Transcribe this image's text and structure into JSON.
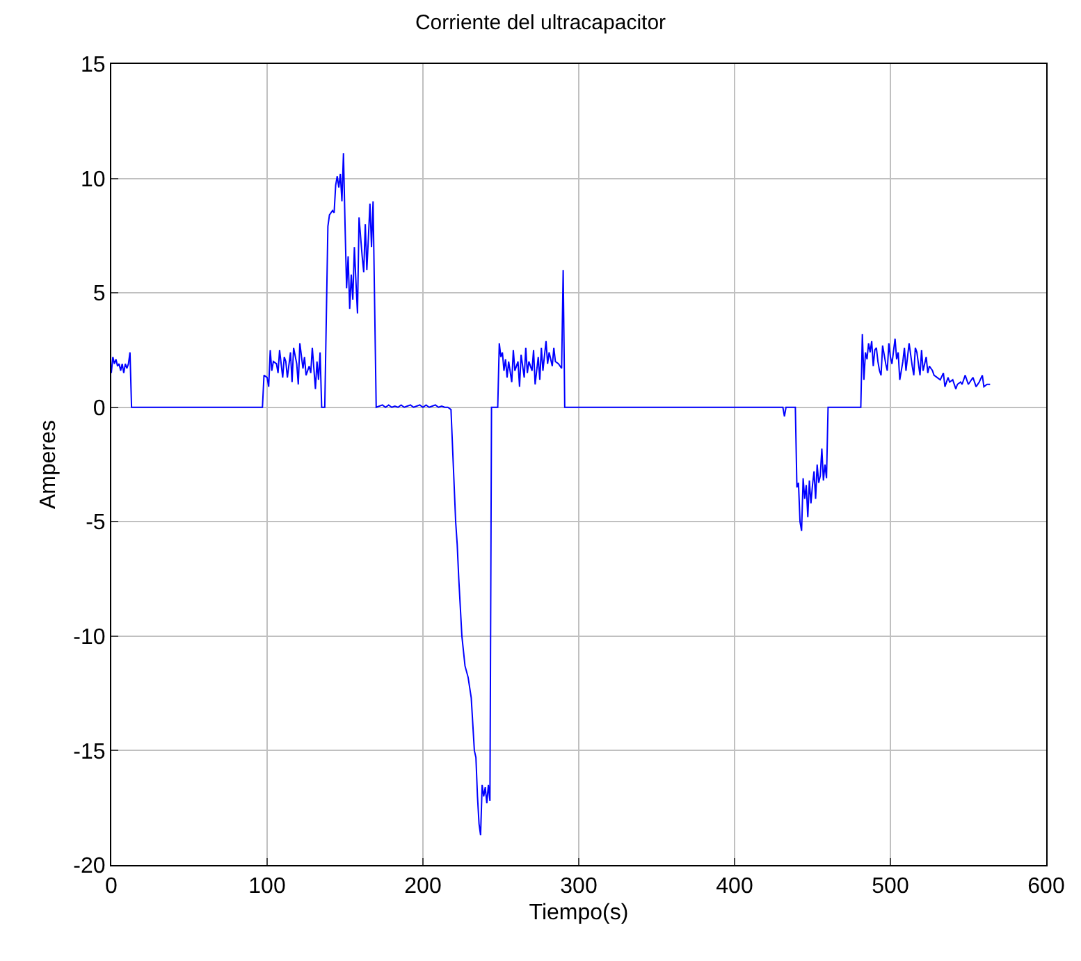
{
  "chart_data": {
    "type": "line",
    "title": "Corriente del ultracapacitor",
    "xlabel": "Tiempo(s)",
    "ylabel": "Amperes",
    "xlim": [
      0,
      600
    ],
    "xticks": [
      0,
      100,
      200,
      300,
      400,
      500,
      600
    ],
    "ylim": [
      -20,
      15
    ],
    "yticks": [
      -20,
      -15,
      -10,
      -5,
      0,
      5,
      10,
      15
    ],
    "grid": true,
    "legend": false,
    "marker": "none",
    "line_style": "solid",
    "series": [
      {
        "color": "#0000ff",
        "x": [
          0,
          1,
          2,
          3,
          4,
          5,
          6,
          7,
          8,
          9,
          10,
          11,
          12,
          13,
          97,
          98,
          100,
          101,
          102,
          103,
          104,
          106,
          107,
          108,
          110,
          111,
          112,
          113,
          115,
          116,
          117,
          119,
          120,
          121,
          123,
          124,
          125,
          126,
          127,
          128,
          129,
          131,
          132,
          133,
          134,
          135,
          137,
          139,
          140,
          142,
          143,
          144,
          145,
          146,
          147,
          148,
          149,
          150,
          151,
          152,
          153,
          154,
          155,
          156,
          157,
          158,
          159,
          161,
          162,
          163,
          164,
          165,
          166,
          167,
          168,
          170,
          174,
          176,
          178,
          180,
          182,
          184,
          186,
          188,
          190,
          192,
          194,
          196,
          198,
          200,
          202,
          204,
          206,
          208,
          210,
          212,
          214,
          216,
          218,
          221,
          222,
          223,
          225,
          227,
          229,
          231,
          233,
          234,
          235,
          236,
          237,
          238,
          239,
          240,
          241,
          242,
          243,
          244,
          248,
          249,
          250,
          251,
          252,
          253,
          254,
          255,
          257,
          258,
          259,
          261,
          262,
          263,
          265,
          266,
          267,
          268,
          270,
          271,
          272,
          274,
          275,
          276,
          277,
          279,
          280,
          281,
          283,
          284,
          285,
          287,
          289,
          290,
          291,
          431,
          432,
          433,
          439,
          440,
          441,
          442,
          443,
          444,
          445,
          446,
          447,
          448,
          449,
          450,
          451,
          452,
          453,
          454,
          455,
          456,
          457,
          458,
          459,
          460,
          481,
          482,
          483,
          484,
          485,
          486,
          487,
          488,
          489,
          490,
          491,
          492,
          493,
          494,
          495,
          497,
          498,
          499,
          500,
          501,
          503,
          504,
          505,
          506,
          508,
          509,
          510,
          511,
          512,
          514,
          515,
          516,
          517,
          519,
          520,
          521,
          523,
          524,
          525,
          527,
          528,
          530,
          532,
          534,
          535,
          537,
          538,
          540,
          542,
          543,
          545,
          546,
          548,
          550,
          551,
          553,
          555,
          557,
          559,
          560,
          562,
          564
        ],
        "values": [
          1.5,
          2.2,
          1.9,
          2.1,
          1.8,
          1.9,
          1.6,
          1.9,
          1.5,
          1.9,
          1.7,
          1.9,
          2.4,
          0,
          0,
          1.4,
          1.3,
          0.9,
          2.5,
          1.6,
          2.0,
          1.9,
          1.5,
          2.5,
          1.3,
          2.2,
          2.0,
          1.3,
          2.4,
          1.1,
          2.6,
          1.9,
          1.0,
          2.8,
          1.7,
          2.2,
          1.4,
          1.6,
          1.8,
          1.5,
          2.6,
          0.8,
          2.0,
          1.2,
          2.4,
          0,
          0,
          7.9,
          8.4,
          8.6,
          8.5,
          9.7,
          10.1,
          9.6,
          10.2,
          9.0,
          11.1,
          8.0,
          5.2,
          6.6,
          4.3,
          5.8,
          4.7,
          7.0,
          5.5,
          4.1,
          8.3,
          6.6,
          5.9,
          8.0,
          6.0,
          7.4,
          8.9,
          7.0,
          9.0,
          0,
          0.1,
          0,
          0.1,
          0,
          0.05,
          0,
          0.1,
          0,
          0.05,
          0.1,
          0,
          0.05,
          0.1,
          0,
          0.1,
          0,
          0.05,
          0.1,
          0,
          0.05,
          0,
          0,
          -0.1,
          -5.0,
          -6.0,
          -7.5,
          -10.0,
          -11.3,
          -11.8,
          -12.7,
          -15.0,
          -15.3,
          -17.0,
          -18.2,
          -18.7,
          -16.5,
          -17.0,
          -16.6,
          -17.3,
          -16.5,
          -17.2,
          0,
          0,
          2.8,
          2.2,
          2.4,
          1.6,
          2.1,
          1.3,
          2.0,
          1.1,
          2.5,
          1.6,
          2.0,
          0.9,
          2.3,
          1.3,
          2.6,
          1.5,
          2.0,
          1.6,
          2.5,
          1.0,
          2.2,
          1.2,
          2.6,
          1.6,
          2.9,
          1.9,
          2.4,
          1.8,
          2.6,
          2.0,
          1.9,
          1.7,
          6.0,
          0,
          0,
          -0.4,
          0,
          0,
          -3.5,
          -3.3,
          -5.0,
          -5.4,
          -3.1,
          -4.0,
          -3.4,
          -4.8,
          -3.2,
          -4.2,
          -3.4,
          -2.8,
          -4.0,
          -2.5,
          -3.3,
          -3.0,
          -1.8,
          -3.2,
          -2.5,
          -3.1,
          0,
          0,
          3.2,
          1.2,
          2.4,
          2.1,
          2.8,
          2.4,
          2.9,
          1.8,
          2.5,
          2.6,
          2.0,
          1.6,
          1.4,
          2.7,
          1.9,
          1.6,
          2.8,
          2.2,
          1.9,
          3.0,
          2.1,
          2.4,
          1.2,
          2.0,
          2.6,
          1.6,
          2.2,
          2.8,
          1.8,
          1.4,
          2.6,
          2.4,
          1.4,
          2.5,
          1.6,
          2.2,
          1.5,
          1.8,
          1.6,
          1.4,
          1.3,
          1.2,
          1.5,
          0.9,
          1.3,
          1.1,
          1.2,
          0.8,
          1.0,
          1.1,
          1.0,
          1.4,
          1.0,
          1.1,
          1.3,
          0.9,
          1.1,
          1.4,
          0.9,
          1.0,
          1.0
        ]
      }
    ]
  }
}
